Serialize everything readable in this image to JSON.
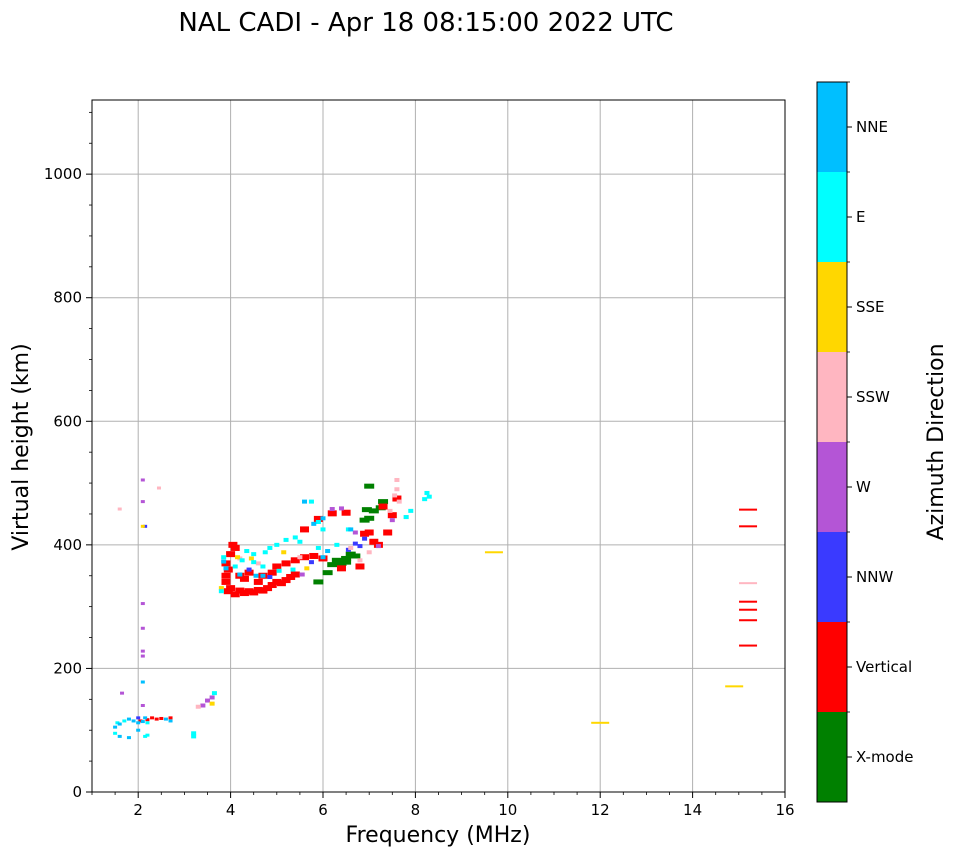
{
  "chart_data": {
    "type": "scatter",
    "title": "NAL CADI - Apr 18 08:15:00 2022 UTC",
    "xlabel": "Frequency (MHz)",
    "ylabel": "Virtual height (km)",
    "xlim": [
      1,
      16
    ],
    "ylim": [
      0,
      1120
    ],
    "xticks": [
      "2",
      "4",
      "6",
      "8",
      "10",
      "12",
      "14",
      "16"
    ],
    "yticks": [
      "0",
      "200",
      "400",
      "600",
      "800",
      "1000"
    ],
    "grid": true,
    "colorbar": {
      "label": "Azimuth Direction",
      "categories": [
        "X-mode",
        "Vertical",
        "NNW",
        "W",
        "SSW",
        "SSE",
        "E",
        "NNE"
      ],
      "colors": [
        "#008000",
        "#ff0000",
        "#3a3aff",
        "#b455d6",
        "#ffb6c1",
        "#ffd700",
        "#00ffff",
        "#00bfff"
      ]
    },
    "series": [
      {
        "name": "X-mode",
        "points": [
          [
            6.3,
            375
          ],
          [
            6.4,
            370
          ],
          [
            6.5,
            378
          ],
          [
            6.6,
            385
          ],
          [
            6.7,
            382
          ],
          [
            6.2,
            368
          ],
          [
            6.5,
            372
          ],
          [
            7.1,
            455
          ],
          [
            6.95,
            457
          ],
          [
            7.0,
            443
          ],
          [
            6.9,
            440
          ],
          [
            6.1,
            355
          ],
          [
            5.9,
            340
          ],
          [
            7.3,
            470
          ],
          [
            7.25,
            460
          ],
          [
            7.0,
            495
          ]
        ]
      },
      {
        "name": "Vertical",
        "points": [
          [
            3.95,
            325
          ],
          [
            4.0,
            330
          ],
          [
            4.1,
            320
          ],
          [
            4.2,
            326
          ],
          [
            4.3,
            322
          ],
          [
            4.4,
            325
          ],
          [
            4.5,
            323
          ],
          [
            4.6,
            327
          ],
          [
            4.7,
            326
          ],
          [
            4.8,
            330
          ],
          [
            4.9,
            335
          ],
          [
            5.0,
            340
          ],
          [
            5.1,
            338
          ],
          [
            5.2,
            343
          ],
          [
            5.3,
            348
          ],
          [
            5.4,
            352
          ],
          [
            3.9,
            340
          ],
          [
            3.9,
            350
          ],
          [
            3.95,
            360
          ],
          [
            3.9,
            370
          ],
          [
            4.0,
            385
          ],
          [
            4.05,
            400
          ],
          [
            4.1,
            395
          ],
          [
            4.2,
            350
          ],
          [
            4.3,
            345
          ],
          [
            4.4,
            355
          ],
          [
            4.6,
            340
          ],
          [
            4.7,
            350
          ],
          [
            4.9,
            355
          ],
          [
            5.0,
            365
          ],
          [
            5.2,
            370
          ],
          [
            5.4,
            375
          ],
          [
            5.6,
            380
          ],
          [
            5.6,
            425
          ],
          [
            5.8,
            382
          ],
          [
            6.0,
            378
          ],
          [
            6.4,
            362
          ],
          [
            6.8,
            365
          ],
          [
            6.9,
            418
          ],
          [
            7.0,
            420
          ],
          [
            7.1,
            405
          ],
          [
            7.2,
            400
          ],
          [
            7.4,
            420
          ],
          [
            7.5,
            448
          ],
          [
            7.3,
            462
          ],
          [
            5.9,
            442
          ],
          [
            6.2,
            451
          ],
          [
            6.5,
            452
          ],
          [
            7.6,
            475
          ],
          [
            2.2,
            117
          ],
          [
            2.3,
            120
          ],
          [
            2.4,
            118
          ],
          [
            2.5,
            119
          ],
          [
            2.7,
            120
          ],
          [
            2.05,
            115
          ],
          [
            15.2,
            457
          ],
          [
            15.2,
            430
          ],
          [
            15.2,
            308
          ],
          [
            15.2,
            295
          ],
          [
            15.2,
            278
          ],
          [
            15.2,
            237
          ]
        ]
      },
      {
        "name": "NNW",
        "points": [
          [
            6.9,
            410
          ],
          [
            6.8,
            398
          ],
          [
            6.7,
            402
          ],
          [
            6.55,
            392
          ],
          [
            5.75,
            372
          ],
          [
            4.4,
            360
          ],
          [
            4.85,
            348
          ],
          [
            2.15,
            430
          ],
          [
            2.0,
            120
          ]
        ]
      },
      {
        "name": "W",
        "points": [
          [
            6.7,
            420
          ],
          [
            7.2,
            398
          ],
          [
            6.4,
            459
          ],
          [
            6.2,
            458
          ],
          [
            5.55,
            352
          ],
          [
            7.5,
            440
          ],
          [
            2.1,
            505
          ],
          [
            2.1,
            470
          ],
          [
            2.1,
            305
          ],
          [
            2.1,
            265
          ],
          [
            2.1,
            228
          ],
          [
            2.1,
            220
          ],
          [
            2.1,
            140
          ],
          [
            1.65,
            160
          ],
          [
            3.5,
            148
          ],
          [
            3.6,
            153
          ],
          [
            3.4,
            140
          ]
        ]
      },
      {
        "name": "SSW",
        "points": [
          [
            7.6,
            505
          ],
          [
            7.6,
            490
          ],
          [
            7.55,
            480
          ],
          [
            7.65,
            470
          ],
          [
            7.45,
            455
          ],
          [
            7.0,
            388
          ],
          [
            6.8,
            375
          ],
          [
            6.6,
            395
          ],
          [
            5.5,
            380
          ],
          [
            7.8,
            445
          ],
          [
            4.2,
            378
          ],
          [
            4.6,
            370
          ],
          [
            15.2,
            338
          ],
          [
            2.45,
            492
          ],
          [
            1.6,
            458
          ],
          [
            3.3,
            138
          ]
        ]
      },
      {
        "name": "SSE",
        "points": [
          [
            9.7,
            388
          ],
          [
            12.0,
            112
          ],
          [
            14.9,
            171
          ],
          [
            4.15,
            380
          ],
          [
            4.45,
            378
          ],
          [
            5.15,
            388
          ],
          [
            5.65,
            362
          ],
          [
            3.6,
            143
          ],
          [
            3.8,
            330
          ],
          [
            2.1,
            430
          ]
        ]
      },
      {
        "name": "E",
        "points": [
          [
            8.25,
            484
          ],
          [
            8.3,
            478
          ],
          [
            8.2,
            474
          ],
          [
            7.9,
            455
          ],
          [
            7.8,
            445
          ],
          [
            5.75,
            470
          ],
          [
            5.9,
            437
          ],
          [
            6.0,
            425
          ],
          [
            6.3,
            400
          ],
          [
            6.55,
            425
          ],
          [
            5.0,
            400
          ],
          [
            5.2,
            408
          ],
          [
            5.4,
            412
          ],
          [
            5.5,
            405
          ],
          [
            5.9,
            395
          ],
          [
            4.85,
            395
          ],
          [
            4.75,
            388
          ],
          [
            4.5,
            385
          ],
          [
            4.35,
            390
          ],
          [
            4.25,
            375
          ],
          [
            4.1,
            365
          ],
          [
            4.5,
            372
          ],
          [
            4.7,
            365
          ],
          [
            5.05,
            358
          ],
          [
            5.35,
            360
          ],
          [
            3.85,
            380
          ],
          [
            3.8,
            325
          ],
          [
            1.55,
            112
          ],
          [
            1.7,
            115
          ],
          [
            2.2,
            112
          ],
          [
            3.2,
            90
          ],
          [
            3.2,
            95
          ],
          [
            2.15,
            90
          ],
          [
            2.2,
            92
          ],
          [
            1.5,
            95
          ],
          [
            3.65,
            160
          ]
        ]
      },
      {
        "name": "NNE",
        "points": [
          [
            5.6,
            470
          ],
          [
            5.8,
            434
          ],
          [
            6.0,
            443
          ],
          [
            6.6,
            425
          ],
          [
            6.0,
            380
          ],
          [
            6.1,
            390
          ],
          [
            4.7,
            350
          ],
          [
            4.55,
            350
          ],
          [
            4.2,
            352
          ],
          [
            3.9,
            362
          ],
          [
            3.85,
            373
          ],
          [
            1.5,
            105
          ],
          [
            1.6,
            110
          ],
          [
            1.8,
            118
          ],
          [
            1.9,
            115
          ],
          [
            2.0,
            112
          ],
          [
            2.1,
            114
          ],
          [
            2.15,
            120
          ],
          [
            2.6,
            118
          ],
          [
            2.7,
            115
          ],
          [
            2.1,
            178
          ],
          [
            2.0,
            100
          ],
          [
            1.8,
            88
          ],
          [
            1.6,
            90
          ]
        ]
      }
    ]
  }
}
